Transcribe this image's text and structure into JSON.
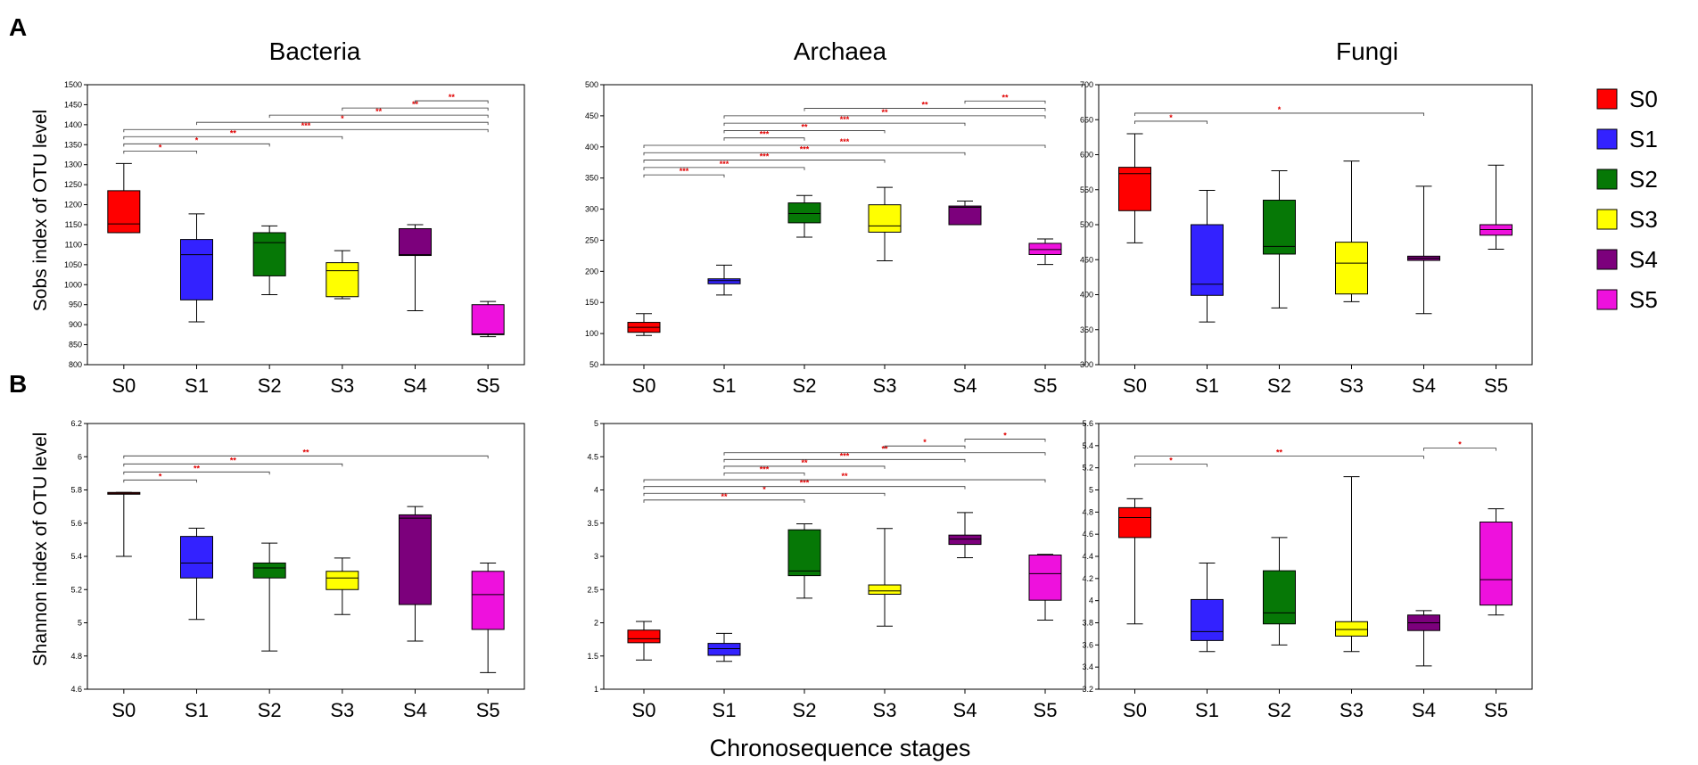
{
  "panel_labels": [
    "A",
    "B"
  ],
  "column_titles": [
    "Bacteria",
    "Archaea",
    "Fungi"
  ],
  "y_labels": [
    "Sobs index of OTU level",
    "Shannon index of OTU level"
  ],
  "x_label": "Chronosequence stages",
  "legend": [
    {
      "label": "S0",
      "color": "#ff0000"
    },
    {
      "label": "S1",
      "color": "#3322ff"
    },
    {
      "label": "S2",
      "color": "#067806"
    },
    {
      "label": "S3",
      "color": "#ffff00"
    },
    {
      "label": "S4",
      "color": "#7c007c"
    },
    {
      "label": "S5",
      "color": "#ee11dd"
    }
  ],
  "sig_color": "#e00000",
  "chart_data": [
    {
      "type": "box",
      "title": "Bacteria",
      "ylabel": "Sobs index of OTU level",
      "ylim": [
        800,
        1500
      ],
      "yticks": [
        800,
        850,
        900,
        950,
        1000,
        1050,
        1100,
        1150,
        1200,
        1250,
        1300,
        1350,
        1400,
        1450,
        1500
      ],
      "categories": [
        "S0",
        "S1",
        "S2",
        "S3",
        "S4",
        "S5"
      ],
      "boxes": [
        {
          "whislo": 1130,
          "q1": 1130,
          "med": 1152,
          "q3": 1235,
          "whishi": 1303
        },
        {
          "whislo": 907,
          "q1": 962,
          "med": 1075,
          "q3": 1113,
          "whishi": 1177
        },
        {
          "whislo": 975,
          "q1": 1022,
          "med": 1105,
          "q3": 1130,
          "whishi": 1147
        },
        {
          "whislo": 965,
          "q1": 970,
          "med": 1035,
          "q3": 1055,
          "whishi": 1085
        },
        {
          "whislo": 935,
          "q1": 1073,
          "med": 1075,
          "q3": 1140,
          "whishi": 1150
        },
        {
          "whislo": 870,
          "q1": 875,
          "med": 877,
          "q3": 950,
          "whishi": 958
        }
      ],
      "significance": [
        {
          "from": 0,
          "to": 1,
          "level": 1,
          "label": "*"
        },
        {
          "from": 0,
          "to": 2,
          "level": 2,
          "label": "*"
        },
        {
          "from": 0,
          "to": 3,
          "level": 3,
          "label": "**"
        },
        {
          "from": 0,
          "to": 5,
          "level": 4,
          "label": "***"
        },
        {
          "from": 1,
          "to": 5,
          "level": 5,
          "label": "*"
        },
        {
          "from": 2,
          "to": 5,
          "level": 6,
          "label": "**"
        },
        {
          "from": 3,
          "to": 5,
          "level": 7,
          "label": "**"
        },
        {
          "from": 4,
          "to": 5,
          "level": 8,
          "label": "**"
        }
      ]
    },
    {
      "type": "box",
      "title": "Archaea",
      "ylabel": "Sobs index of OTU level",
      "ylim": [
        50,
        500
      ],
      "yticks": [
        50,
        100,
        150,
        200,
        250,
        300,
        350,
        400,
        450,
        500
      ],
      "categories": [
        "S0",
        "S1",
        "S2",
        "S3",
        "S4",
        "S5"
      ],
      "boxes": [
        {
          "whislo": 97,
          "q1": 102,
          "med": 110,
          "q3": 118,
          "whishi": 132
        },
        {
          "whislo": 162,
          "q1": 180,
          "med": 185,
          "q3": 188,
          "whishi": 210
        },
        {
          "whislo": 255,
          "q1": 278,
          "med": 293,
          "q3": 310,
          "whishi": 322
        },
        {
          "whislo": 217,
          "q1": 263,
          "med": 273,
          "q3": 307,
          "whishi": 335
        },
        {
          "whislo": 275,
          "q1": 275,
          "med": 303,
          "q3": 305,
          "whishi": 313
        },
        {
          "whislo": 211,
          "q1": 227,
          "med": 235,
          "q3": 245,
          "whishi": 252
        }
      ],
      "significance": [
        {
          "from": 0,
          "to": 1,
          "level": 1,
          "label": "***"
        },
        {
          "from": 0,
          "to": 2,
          "level": 2,
          "label": "***"
        },
        {
          "from": 0,
          "to": 3,
          "level": 3,
          "label": "***"
        },
        {
          "from": 0,
          "to": 4,
          "level": 4,
          "label": "***"
        },
        {
          "from": 0,
          "to": 5,
          "level": 5,
          "label": "***"
        },
        {
          "from": 1,
          "to": 2,
          "level": 6,
          "label": "***"
        },
        {
          "from": 1,
          "to": 3,
          "level": 7,
          "label": "**"
        },
        {
          "from": 1,
          "to": 4,
          "level": 8,
          "label": "***"
        },
        {
          "from": 1,
          "to": 5,
          "level": 9,
          "label": "**"
        },
        {
          "from": 2,
          "to": 5,
          "level": 10,
          "label": "**"
        },
        {
          "from": 4,
          "to": 5,
          "level": 11,
          "label": "**"
        }
      ]
    },
    {
      "type": "box",
      "title": "Fungi",
      "ylabel": "Sobs index of OTU level",
      "ylim": [
        300,
        700
      ],
      "yticks": [
        300,
        350,
        400,
        450,
        500,
        550,
        600,
        650,
        700
      ],
      "categories": [
        "S0",
        "S1",
        "S2",
        "S3",
        "S4",
        "S5"
      ],
      "boxes": [
        {
          "whislo": 474,
          "q1": 520,
          "med": 573,
          "q3": 582,
          "whishi": 630
        },
        {
          "whislo": 361,
          "q1": 399,
          "med": 415,
          "q3": 500,
          "whishi": 549
        },
        {
          "whislo": 381,
          "q1": 458,
          "med": 469,
          "q3": 535,
          "whishi": 577
        },
        {
          "whislo": 390,
          "q1": 401,
          "med": 445,
          "q3": 475,
          "whishi": 591
        },
        {
          "whislo": 373,
          "q1": 449,
          "med": 452,
          "q3": 455,
          "whishi": 555
        },
        {
          "whislo": 465,
          "q1": 485,
          "med": 493,
          "q3": 500,
          "whishi": 585
        }
      ],
      "significance": [
        {
          "from": 0,
          "to": 1,
          "level": 1,
          "label": "*"
        },
        {
          "from": 0,
          "to": 4,
          "level": 2,
          "label": "*"
        }
      ]
    },
    {
      "type": "box",
      "title": "Bacteria",
      "ylabel": "Shannon index of OTU level",
      "ylim": [
        4.6,
        6.2
      ],
      "yticks": [
        4.6,
        4.8,
        5,
        5.2,
        5.4,
        5.6,
        5.8,
        6,
        6.2
      ],
      "categories": [
        "S0",
        "S1",
        "S2",
        "S3",
        "S4",
        "S5"
      ],
      "boxes": [
        {
          "whislo": 5.4,
          "q1": 5.78,
          "med": 5.78,
          "q3": 5.785,
          "whishi": 5.785
        },
        {
          "whislo": 5.02,
          "q1": 5.27,
          "med": 5.36,
          "q3": 5.52,
          "whishi": 5.57
        },
        {
          "whislo": 4.83,
          "q1": 5.27,
          "med": 5.33,
          "q3": 5.36,
          "whishi": 5.48
        },
        {
          "whislo": 5.05,
          "q1": 5.2,
          "med": 5.27,
          "q3": 5.31,
          "whishi": 5.39
        },
        {
          "whislo": 4.89,
          "q1": 5.11,
          "med": 5.63,
          "q3": 5.65,
          "whishi": 5.7
        },
        {
          "whislo": 4.7,
          "q1": 4.96,
          "med": 5.17,
          "q3": 5.31,
          "whishi": 5.36
        }
      ],
      "significance": [
        {
          "from": 0,
          "to": 1,
          "level": 1,
          "label": "*"
        },
        {
          "from": 0,
          "to": 2,
          "level": 2,
          "label": "**"
        },
        {
          "from": 0,
          "to": 3,
          "level": 3,
          "label": "**"
        },
        {
          "from": 0,
          "to": 5,
          "level": 4,
          "label": "**"
        }
      ]
    },
    {
      "type": "box",
      "title": "Archaea",
      "ylabel": "Shannon index of OTU level",
      "ylim": [
        1,
        5
      ],
      "yticks": [
        1,
        1.5,
        2,
        2.5,
        3,
        3.5,
        4,
        4.5,
        5
      ],
      "categories": [
        "S0",
        "S1",
        "S2",
        "S3",
        "S4",
        "S5"
      ],
      "boxes": [
        {
          "whislo": 1.44,
          "q1": 1.7,
          "med": 1.76,
          "q3": 1.89,
          "whishi": 2.02
        },
        {
          "whislo": 1.42,
          "q1": 1.51,
          "med": 1.61,
          "q3": 1.69,
          "whishi": 1.84
        },
        {
          "whislo": 2.37,
          "q1": 2.71,
          "med": 2.78,
          "q3": 3.4,
          "whishi": 3.49
        },
        {
          "whislo": 1.95,
          "q1": 2.43,
          "med": 2.48,
          "q3": 2.57,
          "whishi": 3.42
        },
        {
          "whislo": 2.98,
          "q1": 3.18,
          "med": 3.26,
          "q3": 3.32,
          "whishi": 3.66
        },
        {
          "whislo": 2.04,
          "q1": 2.34,
          "med": 2.74,
          "q3": 3.02,
          "whishi": 3.03
        }
      ],
      "significance": [
        {
          "from": 0,
          "to": 2,
          "level": 1,
          "label": "**"
        },
        {
          "from": 0,
          "to": 3,
          "level": 2,
          "label": "*"
        },
        {
          "from": 0,
          "to": 4,
          "level": 3,
          "label": "***"
        },
        {
          "from": 0,
          "to": 5,
          "level": 4,
          "label": "**"
        },
        {
          "from": 1,
          "to": 2,
          "level": 5,
          "label": "***"
        },
        {
          "from": 1,
          "to": 3,
          "level": 6,
          "label": "**"
        },
        {
          "from": 1,
          "to": 4,
          "level": 7,
          "label": "***"
        },
        {
          "from": 1,
          "to": 5,
          "level": 8,
          "label": "**"
        },
        {
          "from": 3,
          "to": 4,
          "level": 9,
          "label": "*"
        },
        {
          "from": 4,
          "to": 5,
          "level": 10,
          "label": "*"
        }
      ]
    },
    {
      "type": "box",
      "title": "Fungi",
      "ylabel": "Shannon index of OTU level",
      "ylim": [
        3.2,
        5.6
      ],
      "yticks": [
        3.2,
        3.4,
        3.6,
        3.8,
        4,
        4.2,
        4.4,
        4.6,
        4.8,
        5,
        5.2,
        5.4,
        5.6
      ],
      "categories": [
        "S0",
        "S1",
        "S2",
        "S3",
        "S4",
        "S5"
      ],
      "boxes": [
        {
          "whislo": 3.79,
          "q1": 4.57,
          "med": 4.75,
          "q3": 4.84,
          "whishi": 4.92
        },
        {
          "whislo": 3.54,
          "q1": 3.64,
          "med": 3.72,
          "q3": 4.01,
          "whishi": 4.34
        },
        {
          "whislo": 3.6,
          "q1": 3.79,
          "med": 3.89,
          "q3": 4.27,
          "whishi": 4.57
        },
        {
          "whislo": 3.54,
          "q1": 3.68,
          "med": 3.74,
          "q3": 3.81,
          "whishi": 5.12
        },
        {
          "whislo": 3.41,
          "q1": 3.73,
          "med": 3.8,
          "q3": 3.87,
          "whishi": 3.91
        },
        {
          "whislo": 3.87,
          "q1": 3.96,
          "med": 4.19,
          "q3": 4.71,
          "whishi": 4.83
        }
      ],
      "significance": [
        {
          "from": 0,
          "to": 1,
          "level": 1,
          "label": "*"
        },
        {
          "from": 0,
          "to": 4,
          "level": 2,
          "label": "**"
        },
        {
          "from": 4,
          "to": 5,
          "level": 3,
          "label": "*"
        }
      ]
    }
  ]
}
